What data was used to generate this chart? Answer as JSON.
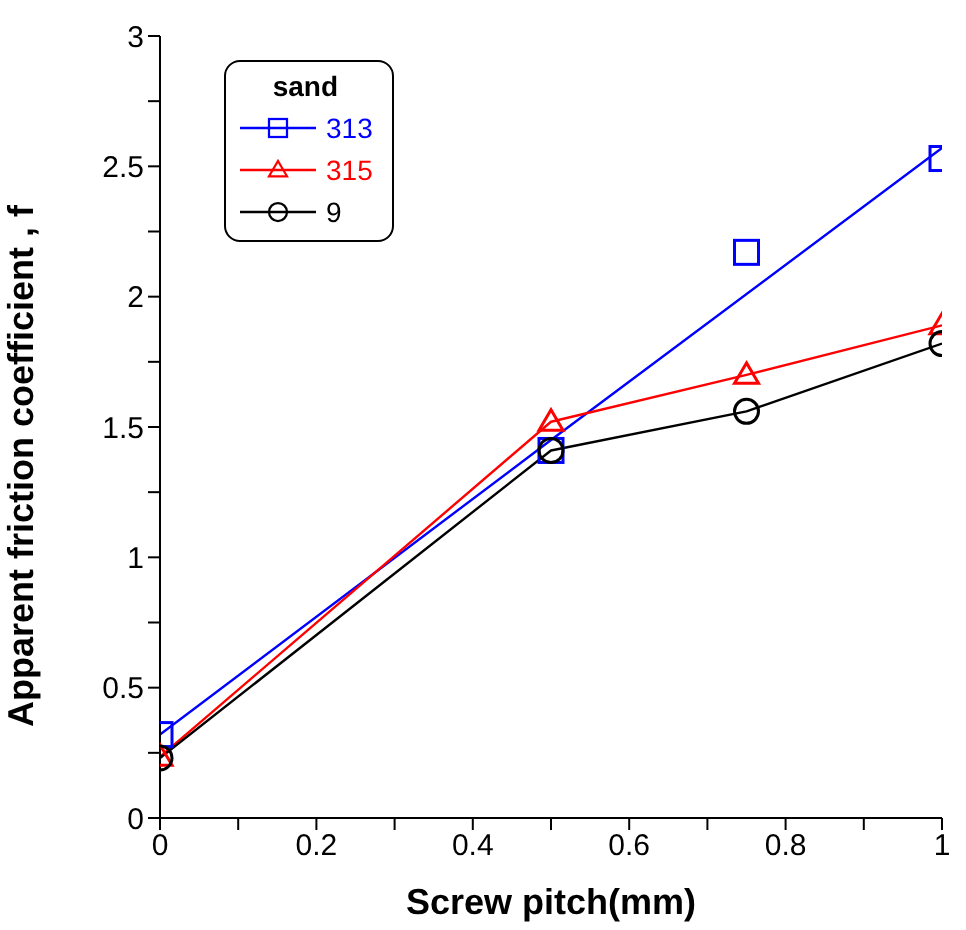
{
  "chart_data": {
    "type": "line",
    "xlabel": "Screw  pitch(mm)",
    "ylabel": "Apparent  friction  coefficient , f",
    "legend_title": "sand",
    "legend": "top left",
    "grid": false,
    "xlim": [
      0,
      1
    ],
    "xticks": [
      0,
      {
        "value": 0.1,
        "label": null
      },
      0.2,
      {
        "value": 0.3,
        "label": null
      },
      0.4,
      {
        "value": 0.5,
        "label": null
      },
      0.6,
      {
        "value": 0.7,
        "label": null
      },
      0.8,
      {
        "value": 0.9,
        "label": null
      },
      1
    ],
    "ylim": [
      0,
      3
    ],
    "yticks": [
      0,
      {
        "value": 0.25,
        "label": null
      },
      0.5,
      {
        "value": 0.75,
        "label": null
      },
      1,
      {
        "value": 1.25,
        "label": null
      },
      1.5,
      {
        "value": 1.75,
        "label": null
      },
      2,
      {
        "value": 2.25,
        "label": null
      },
      2.5,
      {
        "value": 2.75,
        "label": null
      },
      3
    ],
    "series": [
      {
        "name": "313",
        "type": "scatter",
        "marker": "square",
        "color": "#0000ff",
        "x": [
          0,
          0.5,
          0.75,
          1
        ],
        "values": [
          0.32,
          1.41,
          2.17,
          2.53
        ]
      },
      {
        "type": "line",
        "marker": "none",
        "color": "#0000ff",
        "x": [
          0,
          0.5,
          1
        ],
        "values": [
          0.32,
          1.45,
          2.57
        ]
      },
      {
        "name": "315",
        "marker": "triangle",
        "color": "#ff0000",
        "x": [
          0,
          0.5,
          0.75,
          1
        ],
        "values": [
          0.235,
          1.52,
          1.7,
          1.89
        ]
      },
      {
        "name": "9",
        "marker": "circle",
        "color": "#000000",
        "x": [
          0,
          0.5,
          0.75,
          1
        ],
        "values": [
          0.23,
          1.41,
          1.56,
          1.82
        ]
      }
    ]
  }
}
